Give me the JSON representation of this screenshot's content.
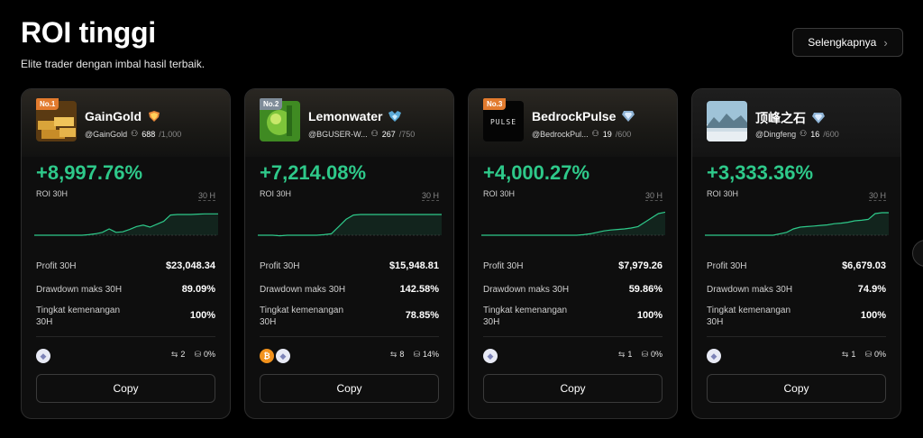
{
  "header": {
    "title": "ROI tinggi",
    "subtitle": "Elite trader dengan imbal hasil terbaik.",
    "more_label": "Selengkapnya"
  },
  "labels": {
    "roi": "ROI 30H",
    "period": "30 H",
    "profit": "Profit 30H",
    "drawdown": "Drawdown maks 30H",
    "winrate": "Tingkat kemenangan 30H",
    "copy": "Copy"
  },
  "colors": {
    "accent_green": "#2ec98a",
    "rank_orange": "#e27b2e"
  },
  "traders": [
    {
      "rank": "No.1",
      "name": "GainGold",
      "handle": "@GainGold",
      "copiers": "688",
      "copiers_max": "/1,000",
      "roi": "+8,997.76%",
      "profit": "$23,048.34",
      "drawdown": "89.09%",
      "winrate": "100%",
      "copy_count": "2",
      "aum": "0%",
      "badge_icon": "gold-shield-icon",
      "coins": [
        "eth"
      ],
      "spark": [
        0,
        0,
        0,
        0,
        0,
        0,
        0,
        0,
        0.02,
        0.05,
        0.1,
        0.22,
        0.1,
        0.12,
        0.2,
        0.3,
        0.35,
        0.28,
        0.38,
        0.48,
        0.7,
        0.72,
        0.72,
        0.72,
        0.73,
        0.74,
        0.74,
        0.74
      ]
    },
    {
      "rank": "No.2",
      "name": "Lemonwater",
      "handle": "@BGUSER-W...",
      "copiers": "267",
      "copiers_max": "/750",
      "roi": "+7,214.08%",
      "profit": "$15,948.81",
      "drawdown": "142.58%",
      "winrate": "78.85%",
      "copy_count": "8",
      "aum": "14%",
      "badge_icon": "diamond-shield-icon",
      "coins": [
        "btc",
        "eth"
      ],
      "spark": [
        0,
        0,
        0,
        -0.02,
        0,
        0,
        0,
        0,
        0,
        0.02,
        0.05,
        0.3,
        0.55,
        0.7,
        0.72,
        0.72,
        0.72,
        0.72,
        0.72,
        0.72,
        0.72,
        0.72,
        0.72,
        0.72,
        0.72,
        0.72
      ]
    },
    {
      "rank": "No.3",
      "name": "BedrockPulse",
      "handle": "@BedrockPul...",
      "copiers": "19",
      "copiers_max": "/600",
      "roi": "+4,000.27%",
      "profit": "$7,979.26",
      "drawdown": "59.86%",
      "winrate": "100%",
      "copy_count": "1",
      "aum": "0%",
      "badge_icon": "diamond-icon",
      "coins": [
        "eth"
      ],
      "spark": [
        0,
        0,
        0,
        0,
        0,
        0,
        0,
        0,
        0,
        0,
        0,
        0,
        0,
        0,
        0,
        0.02,
        0.05,
        0.1,
        0.15,
        0.18,
        0.2,
        0.22,
        0.25,
        0.3,
        0.45,
        0.6,
        0.75,
        0.8
      ]
    },
    {
      "rank": "",
      "name": "顶峰之石",
      "handle": "@Dingfeng",
      "copiers": "16",
      "copiers_max": "/600",
      "roi": "+3,333.36%",
      "profit": "$6,679.03",
      "drawdown": "74.9%",
      "winrate": "100%",
      "copy_count": "1",
      "aum": "0%",
      "badge_icon": "diamond-icon",
      "coins": [
        "eth"
      ],
      "spark": [
        0,
        0,
        0,
        0,
        0,
        0,
        0,
        0,
        0,
        0,
        0,
        0.05,
        0.1,
        0.22,
        0.28,
        0.3,
        0.32,
        0.34,
        0.36,
        0.4,
        0.42,
        0.45,
        0.5,
        0.52,
        0.55,
        0.75,
        0.78,
        0.78
      ]
    }
  ]
}
